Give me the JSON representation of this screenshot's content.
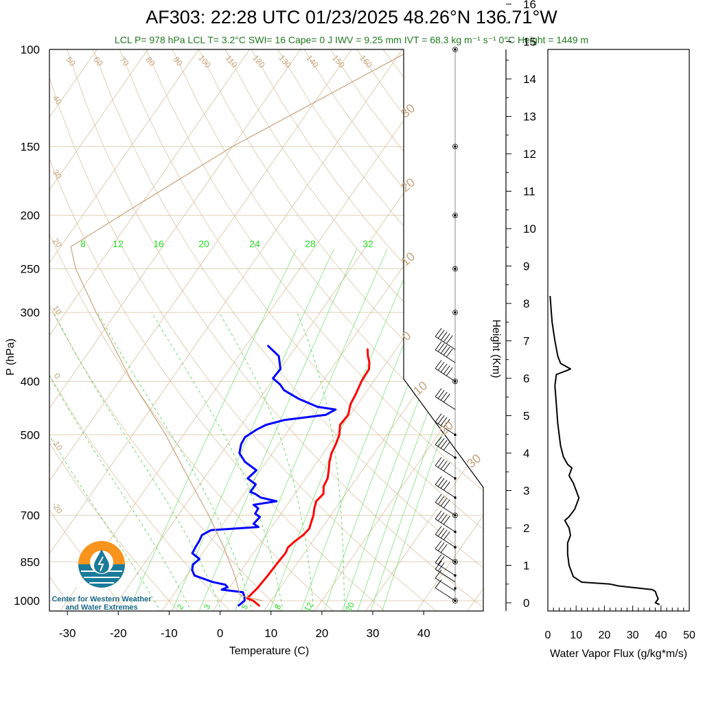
{
  "header": {
    "title": "AF303: 22:28 UTC 01/23/2025  48.26°N 136.71°W",
    "subtitle": "LCL P= 978 hPa  LCL T= 3.2°C  SWI= 16  Cape= 0 J  IWV = 9.25 mm  IVT = 68.3 kg m⁻¹ s⁻¹  0°C Height = 1449 m"
  },
  "logo": {
    "line1": "Center for Western Weather",
    "line2": "and Water Extremes"
  },
  "colors": {
    "temperature": "#ff0000",
    "dewpoint": "#0000ff",
    "mixing_ratio": "#00cc00",
    "adiabats": "#d2b48c",
    "parcel": "#c8a27a",
    "wind": "#000000",
    "flux": "#000000"
  },
  "chart_data": [
    {
      "type": "line",
      "name": "skew-t",
      "xlabel": "Temperature (C)",
      "ylabel": "P (hPa)",
      "y_scale": "log",
      "xlim": [
        -34,
        52
      ],
      "ylim": [
        1050,
        100
      ],
      "x_ticks": [
        -30,
        -20,
        -10,
        0,
        10,
        20,
        30,
        40
      ],
      "x_tick_labels": [
        "-30",
        "-20",
        "-10",
        "0",
        "10",
        "20",
        "30",
        "40"
      ],
      "y_ticks": [
        1000,
        850,
        700,
        500,
        400,
        300,
        250,
        200,
        150,
        100
      ],
      "y_tick_labels": [
        "1000",
        "850",
        "700",
        "500",
        "400",
        "300",
        "250",
        "200",
        "150",
        "100"
      ],
      "mixing_ratio_labels": [
        "8",
        "12",
        "16",
        "20",
        "24",
        "28",
        "32"
      ],
      "mixing_ratio_bottom_labels": [
        "2",
        "3",
        "5",
        "8",
        "12",
        "20"
      ],
      "dry_adiabat_labels": [
        "50",
        "60",
        "70",
        "80",
        "90",
        "100",
        "110",
        "120",
        "130",
        "140",
        "150",
        "160"
      ],
      "left_adiabat_labels": [
        "40",
        "30",
        "20",
        "10",
        "0",
        "-10",
        "-20"
      ],
      "wind_axis_labels": [
        "30",
        "20",
        "10",
        "0",
        "10",
        "20",
        "30"
      ],
      "series": [
        {
          "name": "temperature",
          "points": [
            [
              1020,
              8.3
            ],
            [
              1000,
              6.5
            ],
            [
              990,
              5.0
            ],
            [
              975,
              5.2
            ],
            [
              950,
              5.6
            ],
            [
              900,
              5.9
            ],
            [
              850,
              6.1
            ],
            [
              820,
              6.3
            ],
            [
              800,
              6.0
            ],
            [
              780,
              6.5
            ],
            [
              760,
              7.3
            ],
            [
              740,
              7.6
            ],
            [
              720,
              7.1
            ],
            [
              700,
              6.6
            ],
            [
              680,
              5.8
            ],
            [
              660,
              5.2
            ],
            [
              640,
              5.6
            ],
            [
              620,
              4.6
            ],
            [
              600,
              4.3
            ],
            [
              580,
              3.4
            ],
            [
              560,
              2.4
            ],
            [
              540,
              1.6
            ],
            [
              520,
              1.2
            ],
            [
              500,
              0.6
            ],
            [
              480,
              -0.6
            ],
            [
              460,
              -0.4
            ],
            [
              440,
              -1.4
            ],
            [
              420,
              -1.8
            ],
            [
              400,
              -2.4
            ],
            [
              380,
              -2.6
            ],
            [
              370,
              -3.4
            ],
            [
              360,
              -4.6
            ],
            [
              350,
              -5.6
            ]
          ]
        },
        {
          "name": "dewpoint",
          "points": [
            [
              1020,
              4.3
            ],
            [
              1000,
              4.8
            ],
            [
              985,
              4.3
            ],
            [
              965,
              3.3
            ],
            [
              955,
              -1.2
            ],
            [
              945,
              -0.4
            ],
            [
              935,
              -1.2
            ],
            [
              925,
              -4.0
            ],
            [
              900,
              -8.5
            ],
            [
              880,
              -9.7
            ],
            [
              860,
              -10.3
            ],
            [
              840,
              -9.8
            ],
            [
              820,
              -12.0
            ],
            [
              800,
              -12.2
            ],
            [
              780,
              -12.3
            ],
            [
              760,
              -12.6
            ],
            [
              745,
              -11.5
            ],
            [
              735,
              -2.6
            ],
            [
              725,
              -4.0
            ],
            [
              705,
              -3.7
            ],
            [
              695,
              -5.1
            ],
            [
              680,
              -5.2
            ],
            [
              670,
              -6.6
            ],
            [
              660,
              -2.6
            ],
            [
              650,
              -6.2
            ],
            [
              640,
              -7.8
            ],
            [
              635,
              -9.0
            ],
            [
              615,
              -9.0
            ],
            [
              600,
              -11.4
            ],
            [
              580,
              -10.8
            ],
            [
              560,
              -14.2
            ],
            [
              540,
              -16.5
            ],
            [
              520,
              -17.4
            ],
            [
              505,
              -17.6
            ],
            [
              490,
              -16.4
            ],
            [
              480,
              -15.2
            ],
            [
              470,
              -12.2
            ],
            [
              460,
              -4.8
            ],
            [
              450,
              -3.6
            ],
            [
              445,
              -7.5
            ],
            [
              430,
              -12.4
            ],
            [
              415,
              -16.4
            ],
            [
              405,
              -18.0
            ],
            [
              395,
              -20.2
            ],
            [
              380,
              -20.0
            ],
            [
              360,
              -22.1
            ],
            [
              345,
              -25.6
            ]
          ]
        },
        {
          "name": "parcel",
          "points": [
            [
              1000,
              8.3
            ],
            [
              978,
              3.2
            ],
            [
              900,
              -0.6
            ],
            [
              850,
              -3.5
            ],
            [
              800,
              -6.6
            ],
            [
              700,
              -14.0
            ],
            [
              600,
              -23.0
            ],
            [
              500,
              -33.5
            ],
            [
              400,
              -47.5
            ],
            [
              300,
              -64.0
            ],
            [
              250,
              -74.0
            ],
            [
              228,
              -78.0
            ],
            [
              200,
              -72.5
            ],
            [
              150,
              -60.0
            ],
            [
              100,
              -38.0
            ]
          ]
        }
      ],
      "wind_barbs": [
        [
          1000,
          5,
          230
        ],
        [
          960,
          12,
          230
        ],
        [
          925,
          15,
          235
        ],
        [
          900,
          22,
          235
        ],
        [
          850,
          30,
          240
        ],
        [
          800,
          35,
          245
        ],
        [
          750,
          40,
          245
        ],
        [
          700,
          40,
          250
        ],
        [
          650,
          40,
          250
        ],
        [
          600,
          40,
          255
        ],
        [
          550,
          38,
          255
        ],
        [
          500,
          38,
          260
        ],
        [
          450,
          42,
          255
        ],
        [
          400,
          45,
          255
        ],
        [
          370,
          45,
          255
        ],
        [
          350,
          45,
          255
        ]
      ],
      "wind_dots_pressure": [
        1000,
        950,
        900,
        850,
        800,
        750,
        700,
        650,
        600,
        550,
        500,
        400,
        300,
        250,
        200,
        150,
        100
      ]
    },
    {
      "type": "line",
      "name": "water-vapor-flux",
      "xlabel": "Water Vapor Flux (g/kg*m/s)",
      "ylabel": "Height (Km)",
      "xlim": [
        0,
        50
      ],
      "ylim": [
        -0.2,
        16.5
      ],
      "x_ticks": [
        0,
        10,
        20,
        30,
        40,
        50
      ],
      "y_ticks": [
        0,
        1,
        2,
        3,
        4,
        5,
        6,
        7,
        8,
        9,
        10,
        11,
        12,
        13,
        14,
        15,
        16
      ],
      "series": [
        {
          "name": "flux",
          "points": [
            [
              39.5,
              -0.05
            ],
            [
              38.0,
              0.0
            ],
            [
              39.0,
              0.1
            ],
            [
              38.5,
              0.2
            ],
            [
              38.0,
              0.3
            ],
            [
              37.0,
              0.35
            ],
            [
              25.0,
              0.45
            ],
            [
              22.0,
              0.5
            ],
            [
              12.0,
              0.55
            ],
            [
              9.0,
              0.7
            ],
            [
              7.5,
              1.0
            ],
            [
              7.0,
              1.3
            ],
            [
              7.0,
              1.6
            ],
            [
              8.0,
              1.8
            ],
            [
              7.5,
              2.0
            ],
            [
              6.0,
              2.2
            ],
            [
              7.5,
              2.3
            ],
            [
              9.5,
              2.5
            ],
            [
              11.0,
              2.8
            ],
            [
              10.0,
              3.0
            ],
            [
              9.0,
              3.2
            ],
            [
              7.5,
              3.4
            ],
            [
              8.5,
              3.6
            ],
            [
              7.0,
              3.7
            ],
            [
              5.5,
              3.9
            ],
            [
              4.5,
              4.2
            ],
            [
              3.5,
              4.8
            ],
            [
              3.0,
              5.3
            ],
            [
              2.5,
              5.8
            ],
            [
              3.0,
              6.1
            ],
            [
              6.5,
              6.2
            ],
            [
              8.0,
              6.25
            ],
            [
              4.5,
              6.4
            ],
            [
              3.5,
              6.6
            ],
            [
              2.5,
              7.0
            ],
            [
              1.5,
              7.5
            ],
            [
              1.0,
              8.0
            ],
            [
              0.8,
              8.2
            ]
          ]
        }
      ]
    }
  ]
}
